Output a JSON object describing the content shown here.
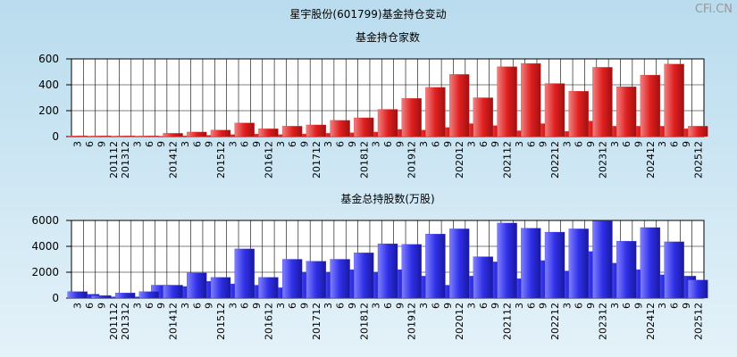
{
  "title": "星宇股份(601799)基金持仓变动",
  "watermark": "CFi.CN",
  "chart_data": [
    {
      "type": "bar",
      "title": "基金持仓家数",
      "color": "#e03030",
      "categories": [
        "3",
        "6",
        "9",
        "201112",
        "201312",
        "3",
        "6",
        "9",
        "201412",
        "3",
        "6",
        "9",
        "201512",
        "3",
        "6",
        "9",
        "201612",
        "3",
        "6",
        "9",
        "201712",
        "3",
        "6",
        "9",
        "201812",
        "3",
        "6",
        "9",
        "201912",
        "3",
        "6",
        "9",
        "202012",
        "3",
        "6",
        "9",
        "202112",
        "3",
        "6",
        "9",
        "202212",
        "3",
        "6",
        "9",
        "202312",
        "3",
        "6",
        "9",
        "202412",
        "3",
        "6",
        "9",
        "202512"
      ],
      "values": [
        5,
        3,
        5,
        3,
        5,
        3,
        5,
        3,
        25,
        5,
        35,
        10,
        50,
        15,
        105,
        20,
        60,
        15,
        80,
        20,
        90,
        25,
        125,
        30,
        145,
        35,
        210,
        55,
        295,
        50,
        380,
        70,
        480,
        100,
        300,
        85,
        540,
        45,
        565,
        100,
        410,
        40,
        350,
        120,
        535,
        80,
        385,
        80,
        475,
        80,
        560,
        60,
        80
      ],
      "ylim": [
        0,
        600
      ],
      "yticks": [
        0,
        200,
        400,
        600
      ],
      "grid": true
    },
    {
      "type": "bar",
      "title": "基金总持股数(万股)",
      "color": "#3a3ae0",
      "categories": [
        "3",
        "6",
        "9",
        "201112",
        "201312",
        "3",
        "6",
        "9",
        "201412",
        "3",
        "6",
        "9",
        "201512",
        "3",
        "6",
        "9",
        "201612",
        "3",
        "6",
        "9",
        "201712",
        "3",
        "6",
        "9",
        "201812",
        "3",
        "6",
        "9",
        "201912",
        "3",
        "6",
        "9",
        "202012",
        "3",
        "6",
        "9",
        "202112",
        "3",
        "6",
        "9",
        "202212",
        "3",
        "6",
        "9",
        "202312",
        "3",
        "6",
        "9",
        "202412",
        "3",
        "6",
        "9",
        "202512"
      ],
      "values": [
        500,
        300,
        200,
        100,
        400,
        100,
        500,
        1000,
        1000,
        900,
        1950,
        1300,
        1600,
        1100,
        3800,
        1000,
        1600,
        800,
        3000,
        2000,
        2850,
        2000,
        3000,
        2200,
        3500,
        2000,
        4200,
        2200,
        4150,
        1700,
        4950,
        1000,
        5350,
        1700,
        3200,
        2800,
        5800,
        1500,
        5400,
        2900,
        5100,
        2100,
        5350,
        3600,
        5950,
        2700,
        4400,
        2200,
        5450,
        1800,
        4350,
        1700,
        1400
      ],
      "ylim": [
        0,
        6000
      ],
      "yticks": [
        0,
        2000,
        4000,
        6000
      ],
      "grid": true
    }
  ]
}
